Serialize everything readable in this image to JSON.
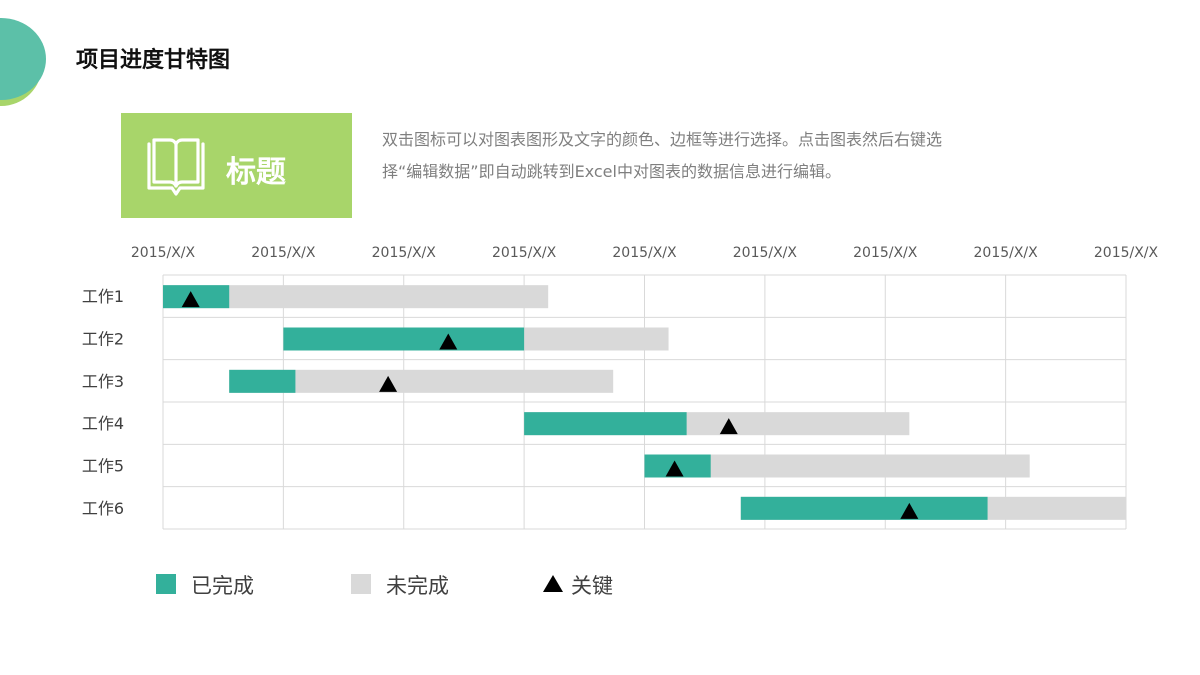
{
  "header": {
    "title": "项目进度甘特图"
  },
  "title_box": {
    "label": "标题",
    "icon": "book-icon"
  },
  "description": {
    "line1": "双击图标可以对图表图形及文字的颜色、边框等进行选择。点击图表然后右键选",
    "line2": "择“编辑数据”即自动跳转到Excel中对图表的数据信息进行编辑。"
  },
  "colors": {
    "completed": "#33b09b",
    "remaining": "#d9d9d9",
    "milestone": "#000000",
    "accent_green": "#a8d56a",
    "deco_teal": "#5cc0a8",
    "deco_green": "#a8d56a"
  },
  "chart_data": {
    "type": "gantt",
    "x_tick_labels": [
      "2015/X/X",
      "2015/X/X",
      "2015/X/X",
      "2015/X/X",
      "2015/X/X",
      "2015/X/X",
      "2015/X/X",
      "2015/X/X",
      "2015/X/X"
    ],
    "x_range": [
      0,
      8
    ],
    "grid": true,
    "tasks": [
      {
        "name": "工作1",
        "start": 0.0,
        "completed_end": 0.55,
        "end": 3.2,
        "milestone": 0.23
      },
      {
        "name": "工作2",
        "start": 1.0,
        "completed_end": 3.0,
        "end": 4.2,
        "milestone": 2.37
      },
      {
        "name": "工作3",
        "start": 0.55,
        "completed_end": 1.1,
        "end": 3.74,
        "milestone": 1.87
      },
      {
        "name": "工作4",
        "start": 3.0,
        "completed_end": 4.35,
        "end": 6.2,
        "milestone": 4.7
      },
      {
        "name": "工作5",
        "start": 4.0,
        "completed_end": 4.55,
        "end": 7.2,
        "milestone": 4.25
      },
      {
        "name": "工作6",
        "start": 4.8,
        "completed_end": 6.85,
        "end": 8.0,
        "milestone": 6.2
      }
    ],
    "legend": [
      {
        "label": "已完成",
        "kind": "completed"
      },
      {
        "label": "未完成",
        "kind": "remaining"
      },
      {
        "label": "关键",
        "kind": "milestone"
      }
    ],
    "legend_position": "bottom"
  }
}
